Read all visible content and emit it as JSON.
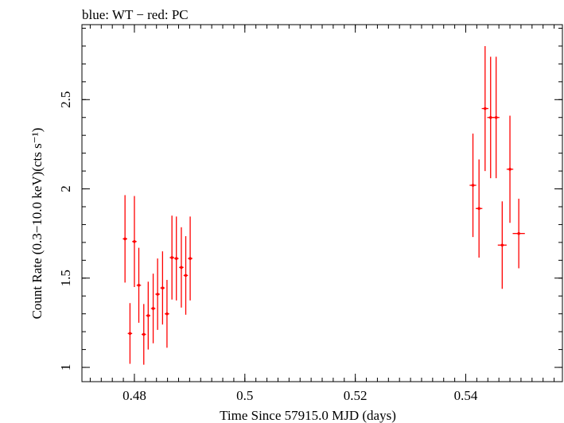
{
  "chart_data": {
    "type": "scatter",
    "title": "blue: WT − red: PC",
    "xlabel": "Time Since 57915.0 MJD (days)",
    "ylabel": "Count Rate (0.3−10.0 keV)(cts s⁻¹)",
    "xlim": [
      0.4705,
      0.5575
    ],
    "ylim": [
      0.92,
      2.92
    ],
    "x_ticks": [
      {
        "value": 0.48,
        "label": "0.48"
      },
      {
        "value": 0.5,
        "label": "0.5"
      },
      {
        "value": 0.52,
        "label": "0.52"
      },
      {
        "value": 0.54,
        "label": "0.54"
      }
    ],
    "y_ticks": [
      {
        "value": 1.0,
        "label": "1"
      },
      {
        "value": 1.5,
        "label": "1.5"
      },
      {
        "value": 2.0,
        "label": "2"
      },
      {
        "value": 2.5,
        "label": "2.5"
      }
    ],
    "grid": false,
    "series": [
      {
        "name": "PC",
        "color": "#ff0000",
        "points": [
          {
            "x": 0.4783,
            "xerr": 0.0004,
            "y": 1.72,
            "yerr": 0.245
          },
          {
            "x": 0.4792,
            "xerr": 0.0004,
            "y": 1.19,
            "yerr": 0.17
          },
          {
            "x": 0.48,
            "xerr": 0.0004,
            "y": 1.705,
            "yerr": 0.255
          },
          {
            "x": 0.4808,
            "xerr": 0.0004,
            "y": 1.46,
            "yerr": 0.21
          },
          {
            "x": 0.4817,
            "xerr": 0.0004,
            "y": 1.185,
            "yerr": 0.17
          },
          {
            "x": 0.4825,
            "xerr": 0.0004,
            "y": 1.29,
            "yerr": 0.19
          },
          {
            "x": 0.4834,
            "xerr": 0.0004,
            "y": 1.33,
            "yerr": 0.195
          },
          {
            "x": 0.4842,
            "xerr": 0.0004,
            "y": 1.41,
            "yerr": 0.2
          },
          {
            "x": 0.4851,
            "xerr": 0.0004,
            "y": 1.445,
            "yerr": 0.205
          },
          {
            "x": 0.4859,
            "xerr": 0.0004,
            "y": 1.3,
            "yerr": 0.19
          },
          {
            "x": 0.4868,
            "xerr": 0.0004,
            "y": 1.615,
            "yerr": 0.235
          },
          {
            "x": 0.4876,
            "xerr": 0.0004,
            "y": 1.61,
            "yerr": 0.235
          },
          {
            "x": 0.4885,
            "xerr": 0.0004,
            "y": 1.56,
            "yerr": 0.225
          },
          {
            "x": 0.4893,
            "xerr": 0.0004,
            "y": 1.515,
            "yerr": 0.22
          },
          {
            "x": 0.4901,
            "xerr": 0.0004,
            "y": 1.61,
            "yerr": 0.235
          },
          {
            "x": 0.5413,
            "xerr": 0.0006,
            "y": 2.02,
            "yerr": 0.29
          },
          {
            "x": 0.5424,
            "xerr": 0.0006,
            "y": 1.89,
            "yerr": 0.275
          },
          {
            "x": 0.5435,
            "xerr": 0.0006,
            "y": 2.45,
            "yerr": 0.35
          },
          {
            "x": 0.5445,
            "xerr": 0.0006,
            "y": 2.4,
            "yerr": 0.34
          },
          {
            "x": 0.5455,
            "xerr": 0.0006,
            "y": 2.4,
            "yerr": 0.34
          },
          {
            "x": 0.5466,
            "xerr": 0.0008,
            "y": 1.685,
            "yerr": 0.245
          },
          {
            "x": 0.548,
            "xerr": 0.0006,
            "y": 2.11,
            "yerr": 0.3
          },
          {
            "x": 0.5496,
            "xerr": 0.0011,
            "y": 1.75,
            "yerr": 0.195
          }
        ]
      }
    ]
  }
}
